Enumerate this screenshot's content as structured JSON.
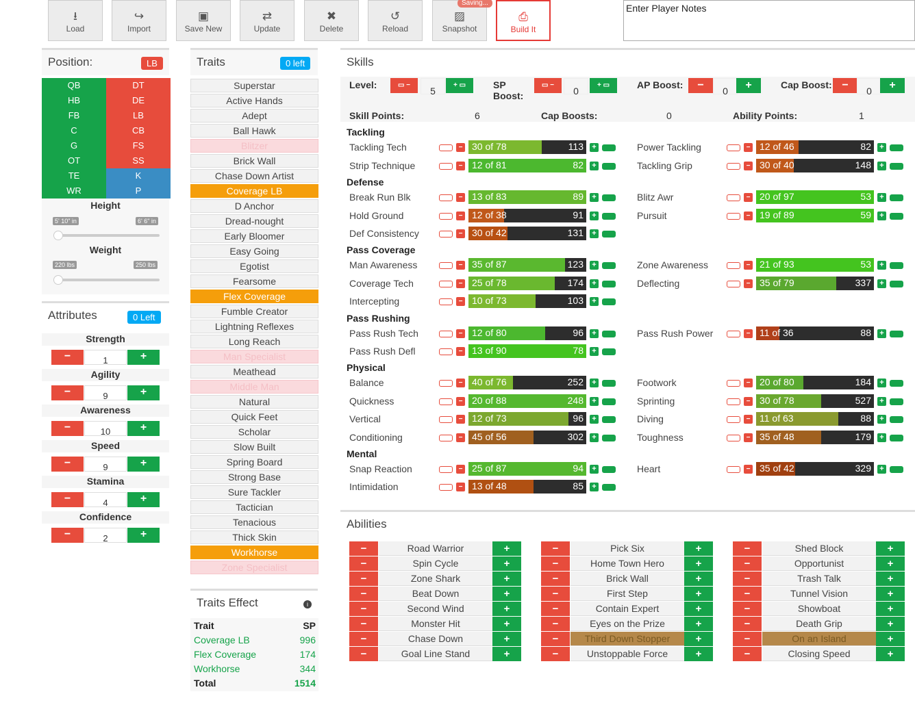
{
  "toolbar": {
    "load": "Load",
    "import": "Import",
    "save_new": "Save New",
    "update": "Update",
    "delete": "Delete",
    "reload": "Reload",
    "snapshot": "Snapshot",
    "build": "Build It",
    "saving": "Saving..."
  },
  "notes": {
    "placeholder": "Enter Player Notes"
  },
  "position": {
    "title": "Position:",
    "current": "LB",
    "rows": [
      [
        "QB",
        "DT"
      ],
      [
        "HB",
        "DE"
      ],
      [
        "FB",
        "LB"
      ],
      [
        "C",
        "CB"
      ],
      [
        "G",
        "FS"
      ],
      [
        "OT",
        "SS"
      ],
      [
        "TE",
        "K"
      ],
      [
        "WR",
        "P"
      ]
    ],
    "height_label": "Height",
    "height_min": "5' 10\" in",
    "height_max": "6' 6\" in",
    "weight_label": "Weight",
    "weight_min": "220 lbs",
    "weight_max": "250 lbs"
  },
  "attributes": {
    "title": "Attributes",
    "left": "0 Left",
    "items": [
      {
        "name": "Strength",
        "value": "1"
      },
      {
        "name": "Agility",
        "value": "9"
      },
      {
        "name": "Awareness",
        "value": "10"
      },
      {
        "name": "Speed",
        "value": "9"
      },
      {
        "name": "Stamina",
        "value": "4"
      },
      {
        "name": "Confidence",
        "value": "2"
      }
    ]
  },
  "traits": {
    "title": "Traits",
    "left": "0 left",
    "items": [
      "Superstar",
      "Active Hands",
      "Adept",
      "Ball Hawk",
      "Blitzer",
      "Brick Wall",
      "Chase Down Artist",
      "Coverage LB",
      "D Anchor",
      "Dread-nought",
      "Early Bloomer",
      "Easy Going",
      "Egotist",
      "Fearsome",
      "Flex Coverage",
      "Fumble Creator",
      "Lightning Reflexes",
      "Long Reach",
      "Man Specialist",
      "Meathead",
      "Middle Man",
      "Natural",
      "Quick Feet",
      "Scholar",
      "Slow Built",
      "Spring Board",
      "Strong Base",
      "Sure Tackler",
      "Tactician",
      "Tenacious",
      "Thick Skin",
      "Workhorse",
      "Zone Specialist"
    ]
  },
  "traits_effect": {
    "title": "Traits Effect",
    "col_trait": "Trait",
    "col_sp": "SP",
    "rows": [
      {
        "k": "Coverage LB",
        "v": "996"
      },
      {
        "k": "Flex Coverage",
        "v": "174"
      },
      {
        "k": "Workhorse",
        "v": "344"
      }
    ],
    "total_label": "Total",
    "total": "1514"
  },
  "skills": {
    "title": "Skills",
    "level_label": "Level:",
    "level": "5",
    "sp_label": "SP",
    "sp_label2": "Boost:",
    "sp": "0",
    "ap_label": "AP Boost:",
    "ap": "0",
    "cap_label": "Cap Boost:",
    "cap": "0",
    "skill_points_label": "Skill Points:",
    "skill_points": "6",
    "cap_boosts_label": "Cap Boosts:",
    "cap_boosts": "0",
    "ability_points_label": "Ability Points:",
    "ability_points": "1",
    "sections": [
      "Tackling",
      "Defense",
      "Pass Coverage",
      "Pass Rushing",
      "Physical",
      "Mental"
    ],
    "rows": [
      {
        "name": "Tackling Tech",
        "text": "30 of 78",
        "val": "113",
        "fill": 0.62,
        "col": "#7cb82f"
      },
      {
        "name": "Power Tackling",
        "text": "12 of 46",
        "val": "82",
        "fill": 0.36,
        "col": "#c0581a"
      },
      {
        "name": "Strip Technique",
        "text": "12 of 81",
        "val": "82",
        "fill": 1,
        "col": "#4cb82f"
      },
      {
        "name": "Tackling Grip",
        "text": "30 of 40",
        "val": "148",
        "fill": 0.32,
        "col": "#c0581a"
      },
      {
        "name": "Break Run Blk",
        "text": "13 of 83",
        "val": "89",
        "fill": 1,
        "col": "#66b82f"
      },
      {
        "name": "Blitz Awr",
        "text": "20 of 97",
        "val": "53",
        "fill": 1,
        "col": "#44c41f"
      },
      {
        "name": "Hold Ground",
        "text": "12 of 38",
        "val": "91",
        "fill": 0.3,
        "col": "#c0581a"
      },
      {
        "name": "Pursuit",
        "text": "19 of 89",
        "val": "59",
        "fill": 1,
        "col": "#44c41f"
      },
      {
        "name": "Def Consistency",
        "text": "30 of 42",
        "val": "131",
        "fill": 0.33,
        "col": "#b85012"
      },
      {
        "name": "Man Awareness",
        "text": "35 of 87",
        "val": "123",
        "fill": 0.82,
        "col": "#5ab82f"
      },
      {
        "name": "Zone Awareness",
        "text": "21 of 93",
        "val": "53",
        "fill": 1,
        "col": "#44c41f"
      },
      {
        "name": "Coverage Tech",
        "text": "25 of 78",
        "val": "174",
        "fill": 0.73,
        "col": "#6ab82f"
      },
      {
        "name": "Deflecting",
        "text": "35 of 79",
        "val": "337",
        "fill": 0.68,
        "col": "#5aa82f"
      },
      {
        "name": "Intercepting",
        "text": "10 of 73",
        "val": "103",
        "fill": 0.57,
        "col": "#7cb82f"
      },
      {
        "name": "Pass Rush Tech",
        "text": "12 of 80",
        "val": "96",
        "fill": 0.65,
        "col": "#4cb82f"
      },
      {
        "name": "Pass Rush Power",
        "text": "11 of 36",
        "val": "88",
        "fill": 0.2,
        "col": "#b0401a"
      },
      {
        "name": "Pass Rush Defl",
        "text": "13 of 90",
        "val": "78",
        "fill": 1,
        "col": "#44c41f"
      },
      {
        "name": "Balance",
        "text": "40 of 76",
        "val": "252",
        "fill": 0.38,
        "col": "#7cb82f"
      },
      {
        "name": "Footwork",
        "text": "20 of 80",
        "val": "184",
        "fill": 0.4,
        "col": "#5aa82f"
      },
      {
        "name": "Quickness",
        "text": "20 of 88",
        "val": "248",
        "fill": 1,
        "col": "#55b82f"
      },
      {
        "name": "Sprinting",
        "text": "30 of 78",
        "val": "527",
        "fill": 0.55,
        "col": "#6aa82f"
      },
      {
        "name": "Vertical",
        "text": "12 of 73",
        "val": "96",
        "fill": 0.85,
        "col": "#7ca82f"
      },
      {
        "name": "Diving",
        "text": "11 of 63",
        "val": "88",
        "fill": 0.7,
        "col": "#8a9a2f"
      },
      {
        "name": "Conditioning",
        "text": "45 of 56",
        "val": "302",
        "fill": 0.55,
        "col": "#a06020"
      },
      {
        "name": "Toughness",
        "text": "35 of 48",
        "val": "179",
        "fill": 0.55,
        "col": "#a06020"
      },
      {
        "name": "Snap Reaction",
        "text": "25 of 87",
        "val": "94",
        "fill": 1,
        "col": "#55b82f"
      },
      {
        "name": "Heart",
        "text": "35 of 42",
        "val": "329",
        "fill": 0.33,
        "col": "#a04010"
      },
      {
        "name": "Intimidation",
        "text": "13 of 48",
        "val": "85",
        "fill": 0.55,
        "col": "#b05012"
      }
    ]
  },
  "abilities": {
    "title": "Abilities",
    "cols": [
      [
        "Road Warrior",
        "Spin Cycle",
        "Zone Shark",
        "Beat Down",
        "Second Wind",
        "Monster Hit",
        "Chase Down",
        "Goal Line Stand"
      ],
      [
        "Pick Six",
        "Home Town Hero",
        "Brick Wall",
        "First Step",
        "Contain Expert",
        "Eyes on the Prize",
        "Third Down Stopper",
        "Unstoppable Force"
      ],
      [
        "Shed Block",
        "Opportunist",
        "Trash Talk",
        "Tunnel Vision",
        "Showboat",
        "Death Grip",
        "On an Island",
        "Closing Speed"
      ]
    ]
  }
}
